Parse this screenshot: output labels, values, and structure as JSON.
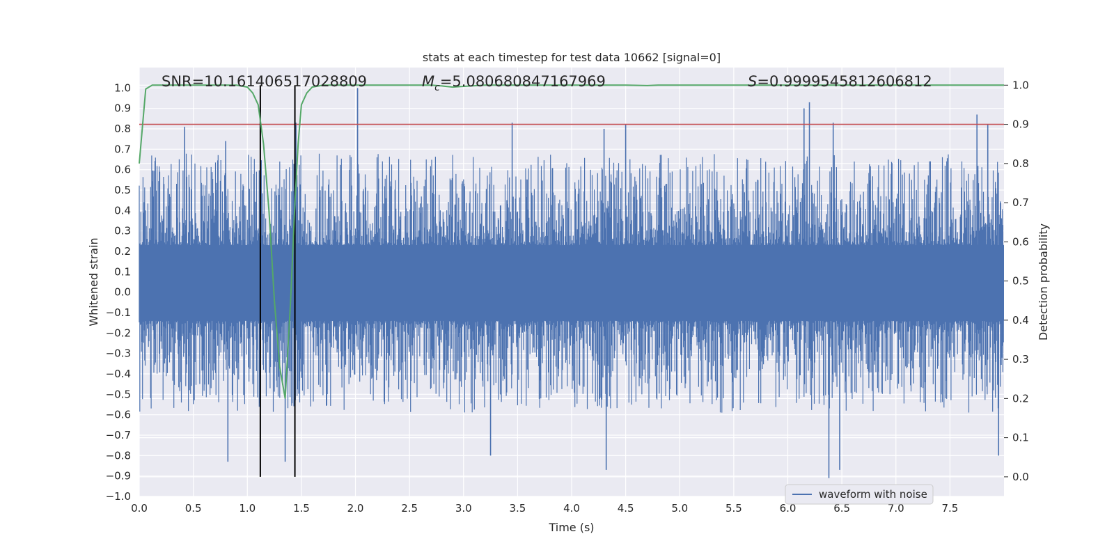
{
  "chart_data": {
    "type": "line",
    "title": "stats at each timestep for test data 10662 [signal=0]",
    "xlabel": "Time (s)",
    "ylabel": "Whitened strain",
    "ylabel_right": "Detection probability",
    "xlim": [
      0.0,
      8.0
    ],
    "ylim": [
      -1.0,
      1.1
    ],
    "ylim_right": [
      -0.05,
      1.045
    ],
    "xticks": [
      "0.0",
      "0.5",
      "1.0",
      "1.5",
      "2.0",
      "2.5",
      "3.0",
      "3.5",
      "4.0",
      "4.5",
      "5.0",
      "5.5",
      "6.0",
      "6.5",
      "7.0",
      "7.5"
    ],
    "yticks": [
      "1.0",
      "0.9",
      "0.8",
      "0.7",
      "0.6",
      "0.5",
      "0.4",
      "0.3",
      "0.2",
      "0.1",
      "0.0",
      "−0.1",
      "−0.2",
      "−0.3",
      "−0.4",
      "−0.5",
      "−0.6",
      "−0.7",
      "−0.8",
      "−0.9",
      "−1.0"
    ],
    "yticks_right": [
      "1.0",
      "0.9",
      "0.8",
      "0.7",
      "0.6",
      "0.5",
      "0.4",
      "0.3",
      "0.2",
      "0.1",
      "0.0"
    ],
    "annotations": {
      "snr": "SNR=10.161406517028809",
      "mc_symbol": "M",
      "mc_sub": "c",
      "mc_value": "=5.080680847167969",
      "s_symbol": "S",
      "s_value": "=0.9999545812606812"
    },
    "threshold_line": {
      "y_right": 0.9,
      "color": "#c44e52"
    },
    "vlines": [
      1.12,
      1.44
    ],
    "waveform": {
      "name": "waveform with noise",
      "color": "#4c72b0",
      "dense_band": [
        -0.14,
        0.23
      ],
      "max_peaks": [
        {
          "t": 0.42,
          "v": 0.81
        },
        {
          "t": 0.8,
          "v": 0.74
        },
        {
          "t": 1.45,
          "v": 0.83
        },
        {
          "t": 2.02,
          "v": 1.0
        },
        {
          "t": 3.45,
          "v": 0.83
        },
        {
          "t": 4.3,
          "v": 0.8
        },
        {
          "t": 4.5,
          "v": 0.82
        },
        {
          "t": 6.15,
          "v": 0.9
        },
        {
          "t": 6.2,
          "v": 0.93
        },
        {
          "t": 6.42,
          "v": 0.83
        },
        {
          "t": 7.75,
          "v": 0.87
        },
        {
          "t": 7.85,
          "v": 0.82
        }
      ],
      "min_peaks": [
        {
          "t": 0.82,
          "v": -0.83
        },
        {
          "t": 1.35,
          "v": -0.83
        },
        {
          "t": 3.25,
          "v": -0.8
        },
        {
          "t": 4.32,
          "v": -0.87
        },
        {
          "t": 6.38,
          "v": -0.91
        },
        {
          "t": 6.48,
          "v": -0.87
        },
        {
          "t": 7.95,
          "v": -0.8
        }
      ]
    },
    "detection_probability": {
      "color": "#55a868",
      "x": [
        0.0,
        0.06,
        0.12,
        0.2,
        0.5,
        0.9,
        1.0,
        1.05,
        1.1,
        1.15,
        1.2,
        1.25,
        1.3,
        1.35,
        1.4,
        1.44,
        1.47,
        1.5,
        1.55,
        1.6,
        1.7,
        1.8,
        2.0,
        2.5,
        2.7,
        2.8,
        2.9,
        3.0,
        3.2,
        4.0,
        4.5,
        4.7,
        4.8,
        5.5,
        6.0,
        7.0,
        8.0
      ],
      "y": [
        0.8,
        0.99,
        1.0,
        1.0,
        1.0,
        1.0,
        0.995,
        0.98,
        0.95,
        0.85,
        0.68,
        0.45,
        0.28,
        0.2,
        0.45,
        0.7,
        0.85,
        0.95,
        0.98,
        0.995,
        1.0,
        1.0,
        1.0,
        1.0,
        1.0,
        0.998,
        0.995,
        0.997,
        1.0,
        1.0,
        1.0,
        0.999,
        1.0,
        1.0,
        1.0,
        1.0,
        1.0
      ]
    },
    "legend": {
      "placement": "lower-right",
      "entries": [
        "waveform with noise"
      ]
    }
  }
}
